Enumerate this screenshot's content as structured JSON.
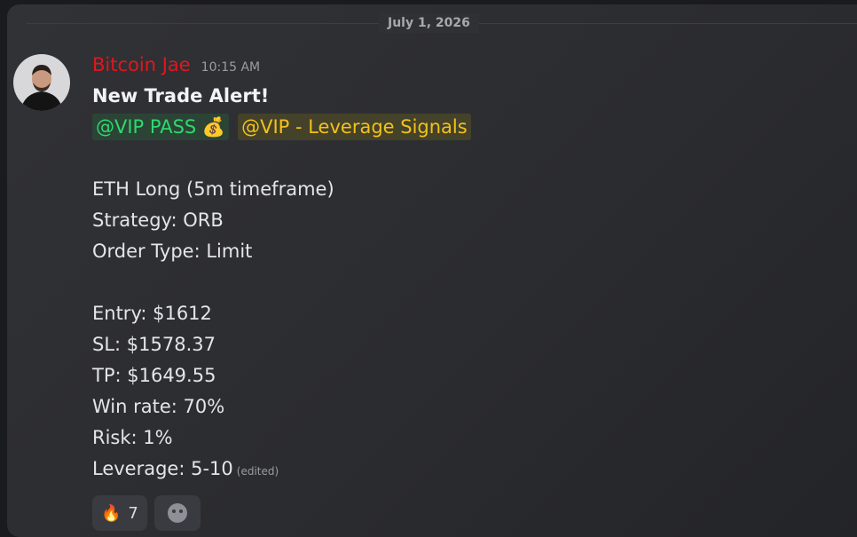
{
  "date_divider": "July 1, 2026",
  "message": {
    "author": "Bitcoin Jae",
    "timestamp": "10:15 AM",
    "heading": "New Trade Alert!",
    "mentions": [
      "@VIP PASS 💰",
      "@VIP - Leverage Signals"
    ],
    "setup_lines": [
      "ETH Long (5m timeframe)",
      "Strategy: ORB",
      "Order Type: Limit"
    ],
    "trade_lines": [
      "Entry: $1612",
      "SL: $1578.37",
      "TP: $1649.55",
      "Win rate: 70%",
      "Risk: 1%",
      "Leverage: 5-10"
    ],
    "edited": "(edited)",
    "reactions": [
      {
        "emoji": "🔥",
        "count": "7"
      }
    ]
  }
}
